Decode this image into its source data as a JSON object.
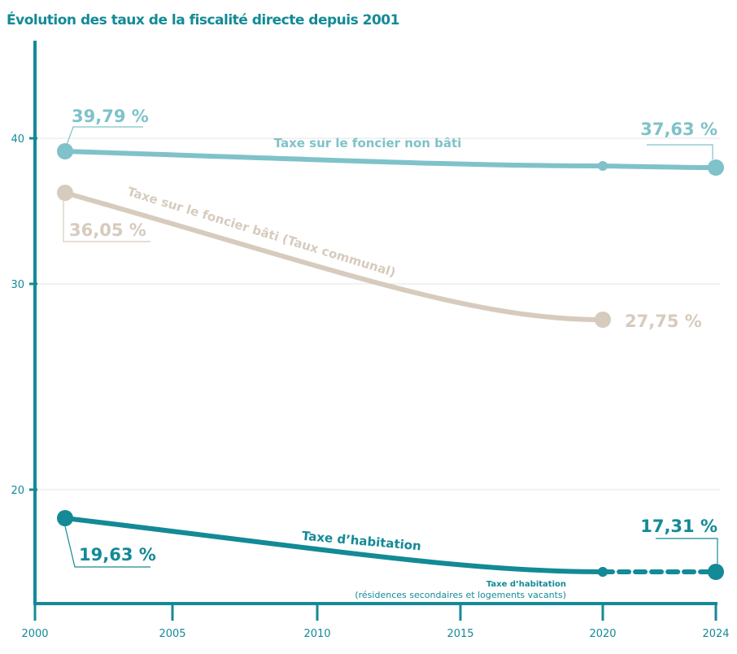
{
  "chart_data": {
    "type": "line",
    "title": "Évolution des taux de la fiscalité directe depuis 2001",
    "xlabel": "",
    "ylabel": "",
    "x_ticks": [
      "2000",
      "2005",
      "2010",
      "2015",
      "2020",
      "2024"
    ],
    "y_ticks": [
      "20",
      "30",
      "40"
    ],
    "grid": true,
    "series": [
      {
        "name": "Taxe sur le foncier non bâti",
        "color": "#7fc2c9",
        "x": [
          2001,
          2020,
          2024
        ],
        "values": [
          39.79,
          37.8,
          37.63
        ],
        "labels": [
          "39,79 %",
          "37,63 %"
        ]
      },
      {
        "name": "Taxe sur le foncier bâti (Taux communal)",
        "color": "#d6cbbd",
        "x": [
          2001,
          2020
        ],
        "values": [
          36.05,
          27.75
        ],
        "labels": [
          "36,05 %",
          "27,75 %"
        ]
      },
      {
        "name": "Taxe d’habitation",
        "color": "#138a96",
        "x": [
          2001,
          2020
        ],
        "values": [
          19.63,
          17.31
        ],
        "labels": [
          "19,63 %",
          "17,31 %"
        ]
      },
      {
        "name": "Taxe d’habitation",
        "subtitle": "(résidences secondaires et logements vacants)",
        "color": "#138a96",
        "dashed": true,
        "x": [
          2020,
          2024
        ],
        "values": [
          17.31,
          17.31
        ]
      }
    ]
  }
}
